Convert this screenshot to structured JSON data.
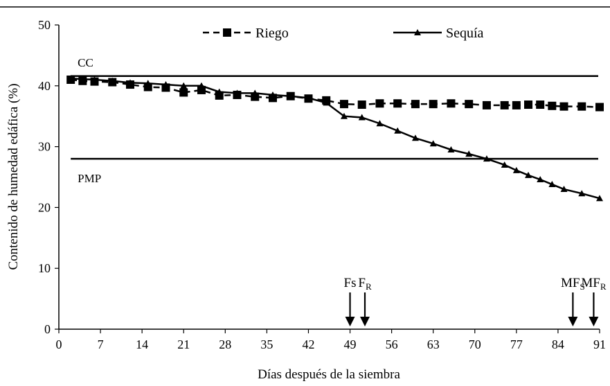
{
  "chart_data": {
    "type": "line",
    "xlabel": "Días después de la siembra",
    "ylabel": "Contenido de humedad edáfica (%)",
    "xlim": [
      0,
      91
    ],
    "ylim": [
      0,
      50
    ],
    "x_ticks": [
      0,
      7,
      14,
      21,
      28,
      35,
      42,
      49,
      56,
      63,
      70,
      77,
      84,
      91
    ],
    "y_ticks": [
      0,
      10,
      20,
      30,
      40,
      50
    ],
    "grid": false,
    "legend_position": "top",
    "series": [
      {
        "name": "Riego",
        "marker": "square",
        "line_style": "dashed",
        "x": [
          2,
          4,
          6,
          9,
          12,
          15,
          18,
          21,
          24,
          27,
          30,
          33,
          36,
          39,
          42,
          45,
          48,
          51,
          54,
          57,
          60,
          63,
          66,
          69,
          72,
          75,
          77,
          79,
          81,
          83,
          85,
          88,
          91
        ],
        "y": [
          41,
          40.8,
          40.7,
          40.6,
          40.2,
          39.8,
          39.7,
          38.9,
          39.3,
          38.4,
          38.5,
          38.2,
          38,
          38.3,
          37.9,
          37.6,
          37,
          36.9,
          37.1,
          37.1,
          37,
          37,
          37.1,
          37,
          36.8,
          36.8,
          36.8,
          36.9,
          36.9,
          36.7,
          36.6,
          36.6,
          36.5
        ]
      },
      {
        "name": "Sequía",
        "marker": "triangle",
        "line_style": "solid",
        "x": [
          2,
          4,
          6,
          9,
          12,
          15,
          18,
          21,
          24,
          27,
          30,
          33,
          36,
          39,
          42,
          45,
          48,
          51,
          54,
          57,
          60,
          63,
          66,
          69,
          72,
          75,
          77,
          79,
          81,
          83,
          85,
          88,
          91
        ],
        "y": [
          41.2,
          41.1,
          41,
          40.8,
          40.5,
          40.4,
          40.2,
          40,
          40,
          39,
          38.8,
          38.8,
          38.5,
          38.3,
          38,
          37.2,
          35,
          34.8,
          33.8,
          32.6,
          31.4,
          30.5,
          29.5,
          28.8,
          28,
          27,
          26.1,
          25.3,
          24.6,
          23.8,
          23,
          22.3,
          21.5
        ]
      }
    ],
    "reference_lines": [
      {
        "label": "CC",
        "y": 41.6
      },
      {
        "label": "PMP",
        "y": 28
      }
    ],
    "annotations": [
      {
        "label": "Fs",
        "sub": "",
        "x": 49
      },
      {
        "label": "F",
        "sub": "R",
        "x": 51.5
      },
      {
        "label": "MF",
        "sub": "S",
        "x": 86.5
      },
      {
        "label": "MF",
        "sub": "R",
        "x": 90
      }
    ]
  }
}
